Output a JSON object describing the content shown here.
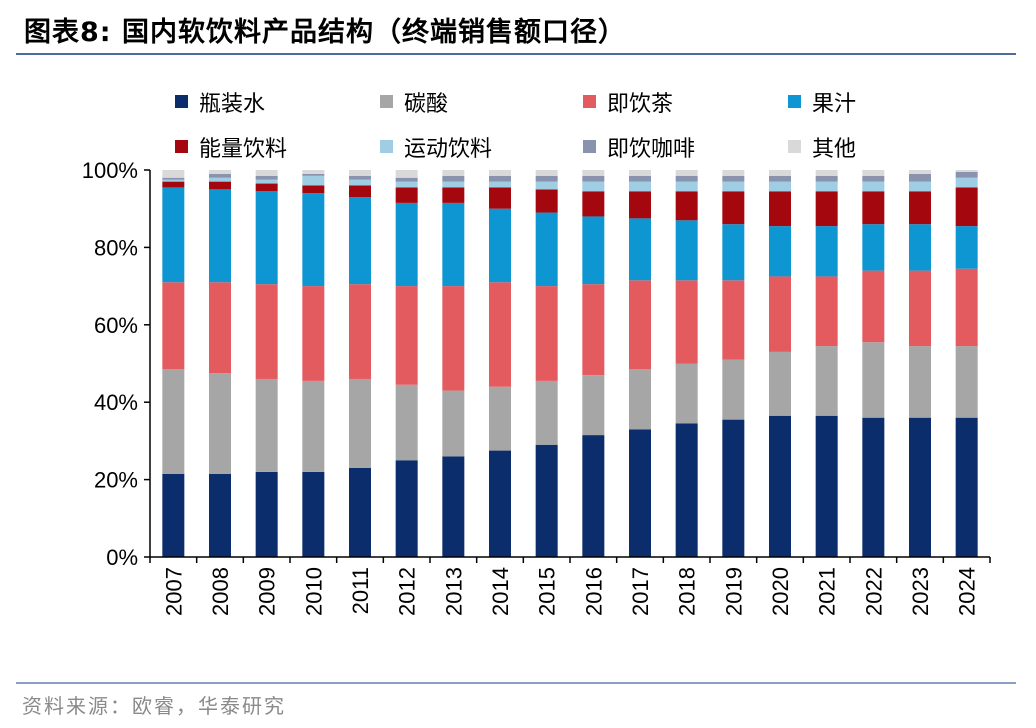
{
  "title": "图表8:  国内软饮料产品结构（终端销售额口径）",
  "source": "资料来源：欧睿，华泰研究",
  "colors": {
    "瓶装水": "#0b2d6b",
    "碳酸": "#a6a6a6",
    "即饮茶": "#e35b5f",
    "果汁": "#0d96d2",
    "能量饮料": "#a5070f",
    "运动饮料": "#9fcde3",
    "即饮咖啡": "#8a93ad",
    "其他": "#d9d9d9"
  },
  "chart_data": {
    "type": "bar",
    "stacked": true,
    "categories": [
      "2007",
      "2008",
      "2009",
      "2010",
      "2011",
      "2012",
      "2013",
      "2014",
      "2015",
      "2016",
      "2017",
      "2018",
      "2019",
      "2020",
      "2021",
      "2022",
      "2023",
      "2024"
    ],
    "y_ticks": [
      "0%",
      "20%",
      "40%",
      "60%",
      "80%",
      "100%"
    ],
    "ylim": [
      0,
      100
    ],
    "legend_position": "top",
    "series": [
      {
        "name": "瓶装水",
        "values": [
          21.5,
          21.5,
          22,
          22,
          23,
          25,
          26,
          27.5,
          29,
          31.5,
          33,
          34.5,
          35.5,
          36.5,
          36.5,
          36,
          36,
          36
        ]
      },
      {
        "name": "碳酸",
        "values": [
          27,
          26,
          24,
          23.5,
          23,
          19.5,
          17,
          16.5,
          16.5,
          15.5,
          15.5,
          15.5,
          15.5,
          16.5,
          18,
          19.5,
          18.5,
          18.5
        ]
      },
      {
        "name": "即饮茶",
        "values": [
          22.5,
          23.5,
          24.5,
          24.5,
          24.5,
          25.5,
          27,
          27,
          24.5,
          23.5,
          23,
          21.5,
          20.5,
          19.5,
          18,
          18.5,
          19.5,
          20
        ]
      },
      {
        "name": "果汁",
        "values": [
          24.5,
          24,
          24,
          24,
          22.5,
          21.5,
          21.5,
          19,
          19,
          17.5,
          16,
          15.5,
          14.5,
          13,
          13,
          12,
          12,
          11
        ]
      },
      {
        "name": "能量饮料",
        "values": [
          1.5,
          2,
          2,
          2,
          3,
          4,
          4,
          5.5,
          6,
          6.5,
          7,
          7.5,
          8.5,
          9,
          9,
          8.5,
          8.5,
          10
        ]
      },
      {
        "name": "运动饮料",
        "values": [
          0.5,
          1,
          1,
          2.5,
          1.5,
          1.5,
          1.5,
          1.5,
          2,
          2.5,
          2.5,
          2.5,
          2.5,
          2.5,
          2.5,
          2.5,
          2.5,
          2.5
        ]
      },
      {
        "name": "即饮咖啡",
        "values": [
          0.5,
          1,
          1,
          0.5,
          1,
          1,
          1.5,
          1.5,
          1.5,
          1.5,
          1.5,
          1.5,
          1.5,
          1.5,
          1.5,
          1.5,
          2,
          1.5
        ]
      },
      {
        "name": "其他",
        "values": [
          2,
          1,
          1.5,
          1,
          1.5,
          2,
          1.5,
          1.5,
          1.5,
          1.5,
          1.5,
          1.5,
          1.5,
          1.5,
          1.5,
          1.5,
          1,
          0.5
        ]
      }
    ]
  }
}
